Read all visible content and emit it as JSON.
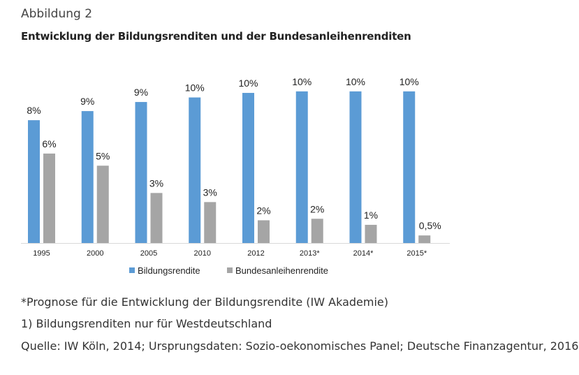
{
  "figure_label": "Abbildung 2",
  "title": "Entwicklung der Bildungsrenditen und der Bundesanleihenrenditen",
  "notes": {
    "prognose": "*Prognose für die Entwicklung der Bildungsrendite (IW Akademie)",
    "footnote": "1) Bildungsrenditen nur für Westdeutschland",
    "source": "Quelle: IW Köln, 2014; Ursprungsdaten: Sozio-oekonomisches Panel; Deutsche Finanzagentur, 2016"
  },
  "chart_data": {
    "type": "bar",
    "categories": [
      "1995",
      "2000",
      "2005",
      "2010",
      "2012",
      "2013*",
      "2014*",
      "2015*"
    ],
    "series": [
      {
        "name": "Bildungsrendite",
        "color": "#5b9bd5",
        "values": [
          8.1,
          8.7,
          9.3,
          9.6,
          9.9,
          10.0,
          10.0,
          10.0
        ],
        "labels": [
          "8%",
          "9%",
          "9%",
          "10%",
          "10%",
          "10%",
          "10%",
          "10%"
        ]
      },
      {
        "name": "Bundesanleihenrendite",
        "color": "#a5a5a5",
        "values": [
          5.9,
          5.1,
          3.3,
          2.7,
          1.5,
          1.6,
          1.2,
          0.5
        ],
        "labels": [
          "6%",
          "5%",
          "3%",
          "3%",
          "2%",
          "2%",
          "1%",
          "0,5%"
        ]
      }
    ],
    "ylim": [
      0,
      10.5
    ],
    "grid": false,
    "legend_position": "bottom"
  }
}
